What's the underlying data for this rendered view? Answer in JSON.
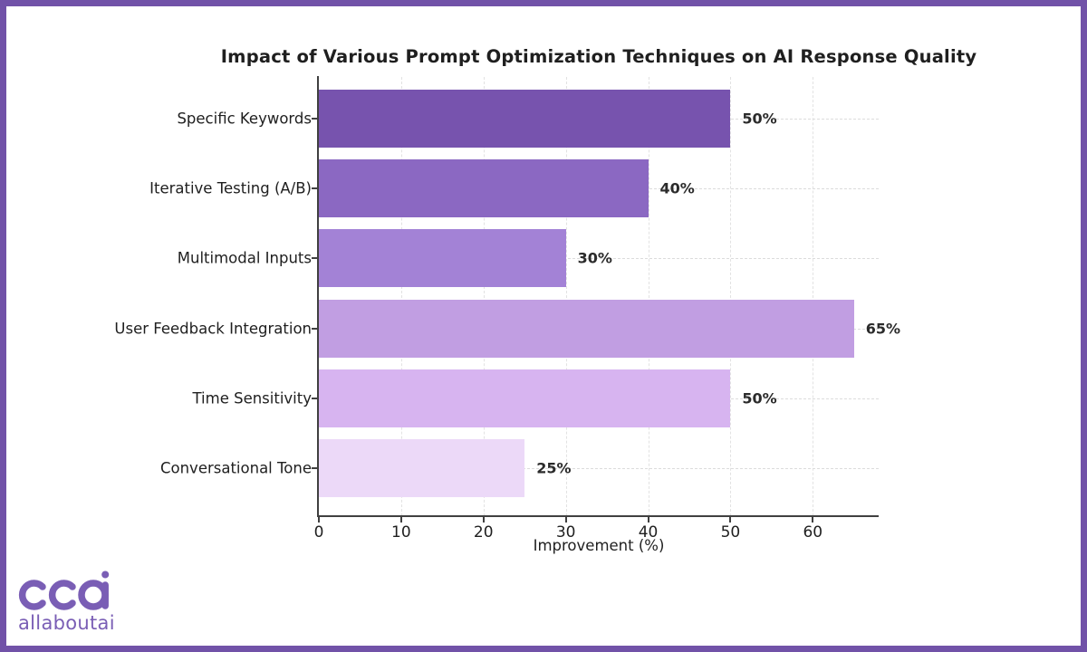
{
  "frame": {
    "border_color": "#7152A8",
    "background": "#ffffff"
  },
  "chart_data": {
    "type": "bar",
    "orientation": "horizontal",
    "title": "Impact of Various Prompt Optimization Techniques on AI Response Quality",
    "categories": [
      "Specific Keywords",
      "Iterative Testing (A/B)",
      "Multimodal Inputs",
      "User Feedback Integration",
      "Time Sensitivity",
      "Conversational Tone"
    ],
    "values": [
      50,
      40,
      30,
      65,
      50,
      25
    ],
    "value_labels": [
      "50%",
      "40%",
      "30%",
      "65%",
      "50%",
      "25%"
    ],
    "bar_colors": [
      "#7753AE",
      "#8B68C2",
      "#A382D6",
      "#C19EE2",
      "#D7B4F0",
      "#ECD9F8"
    ],
    "xlabel": "Improvement (%)",
    "x_tick_labels": [
      "0",
      "10",
      "20",
      "30",
      "40",
      "50",
      "60"
    ],
    "x_tick_values": [
      0,
      10,
      20,
      30,
      40,
      50,
      60
    ],
    "xlim": [
      0,
      68
    ],
    "grid": {
      "vertical_dashed": true,
      "horizontal_dashed_at_bar_centers": true
    },
    "legend": "none"
  },
  "logo": {
    "icon": "allaboutai-logo-mark",
    "wordmark": "allaboutai",
    "color": "#7A5EB5"
  }
}
